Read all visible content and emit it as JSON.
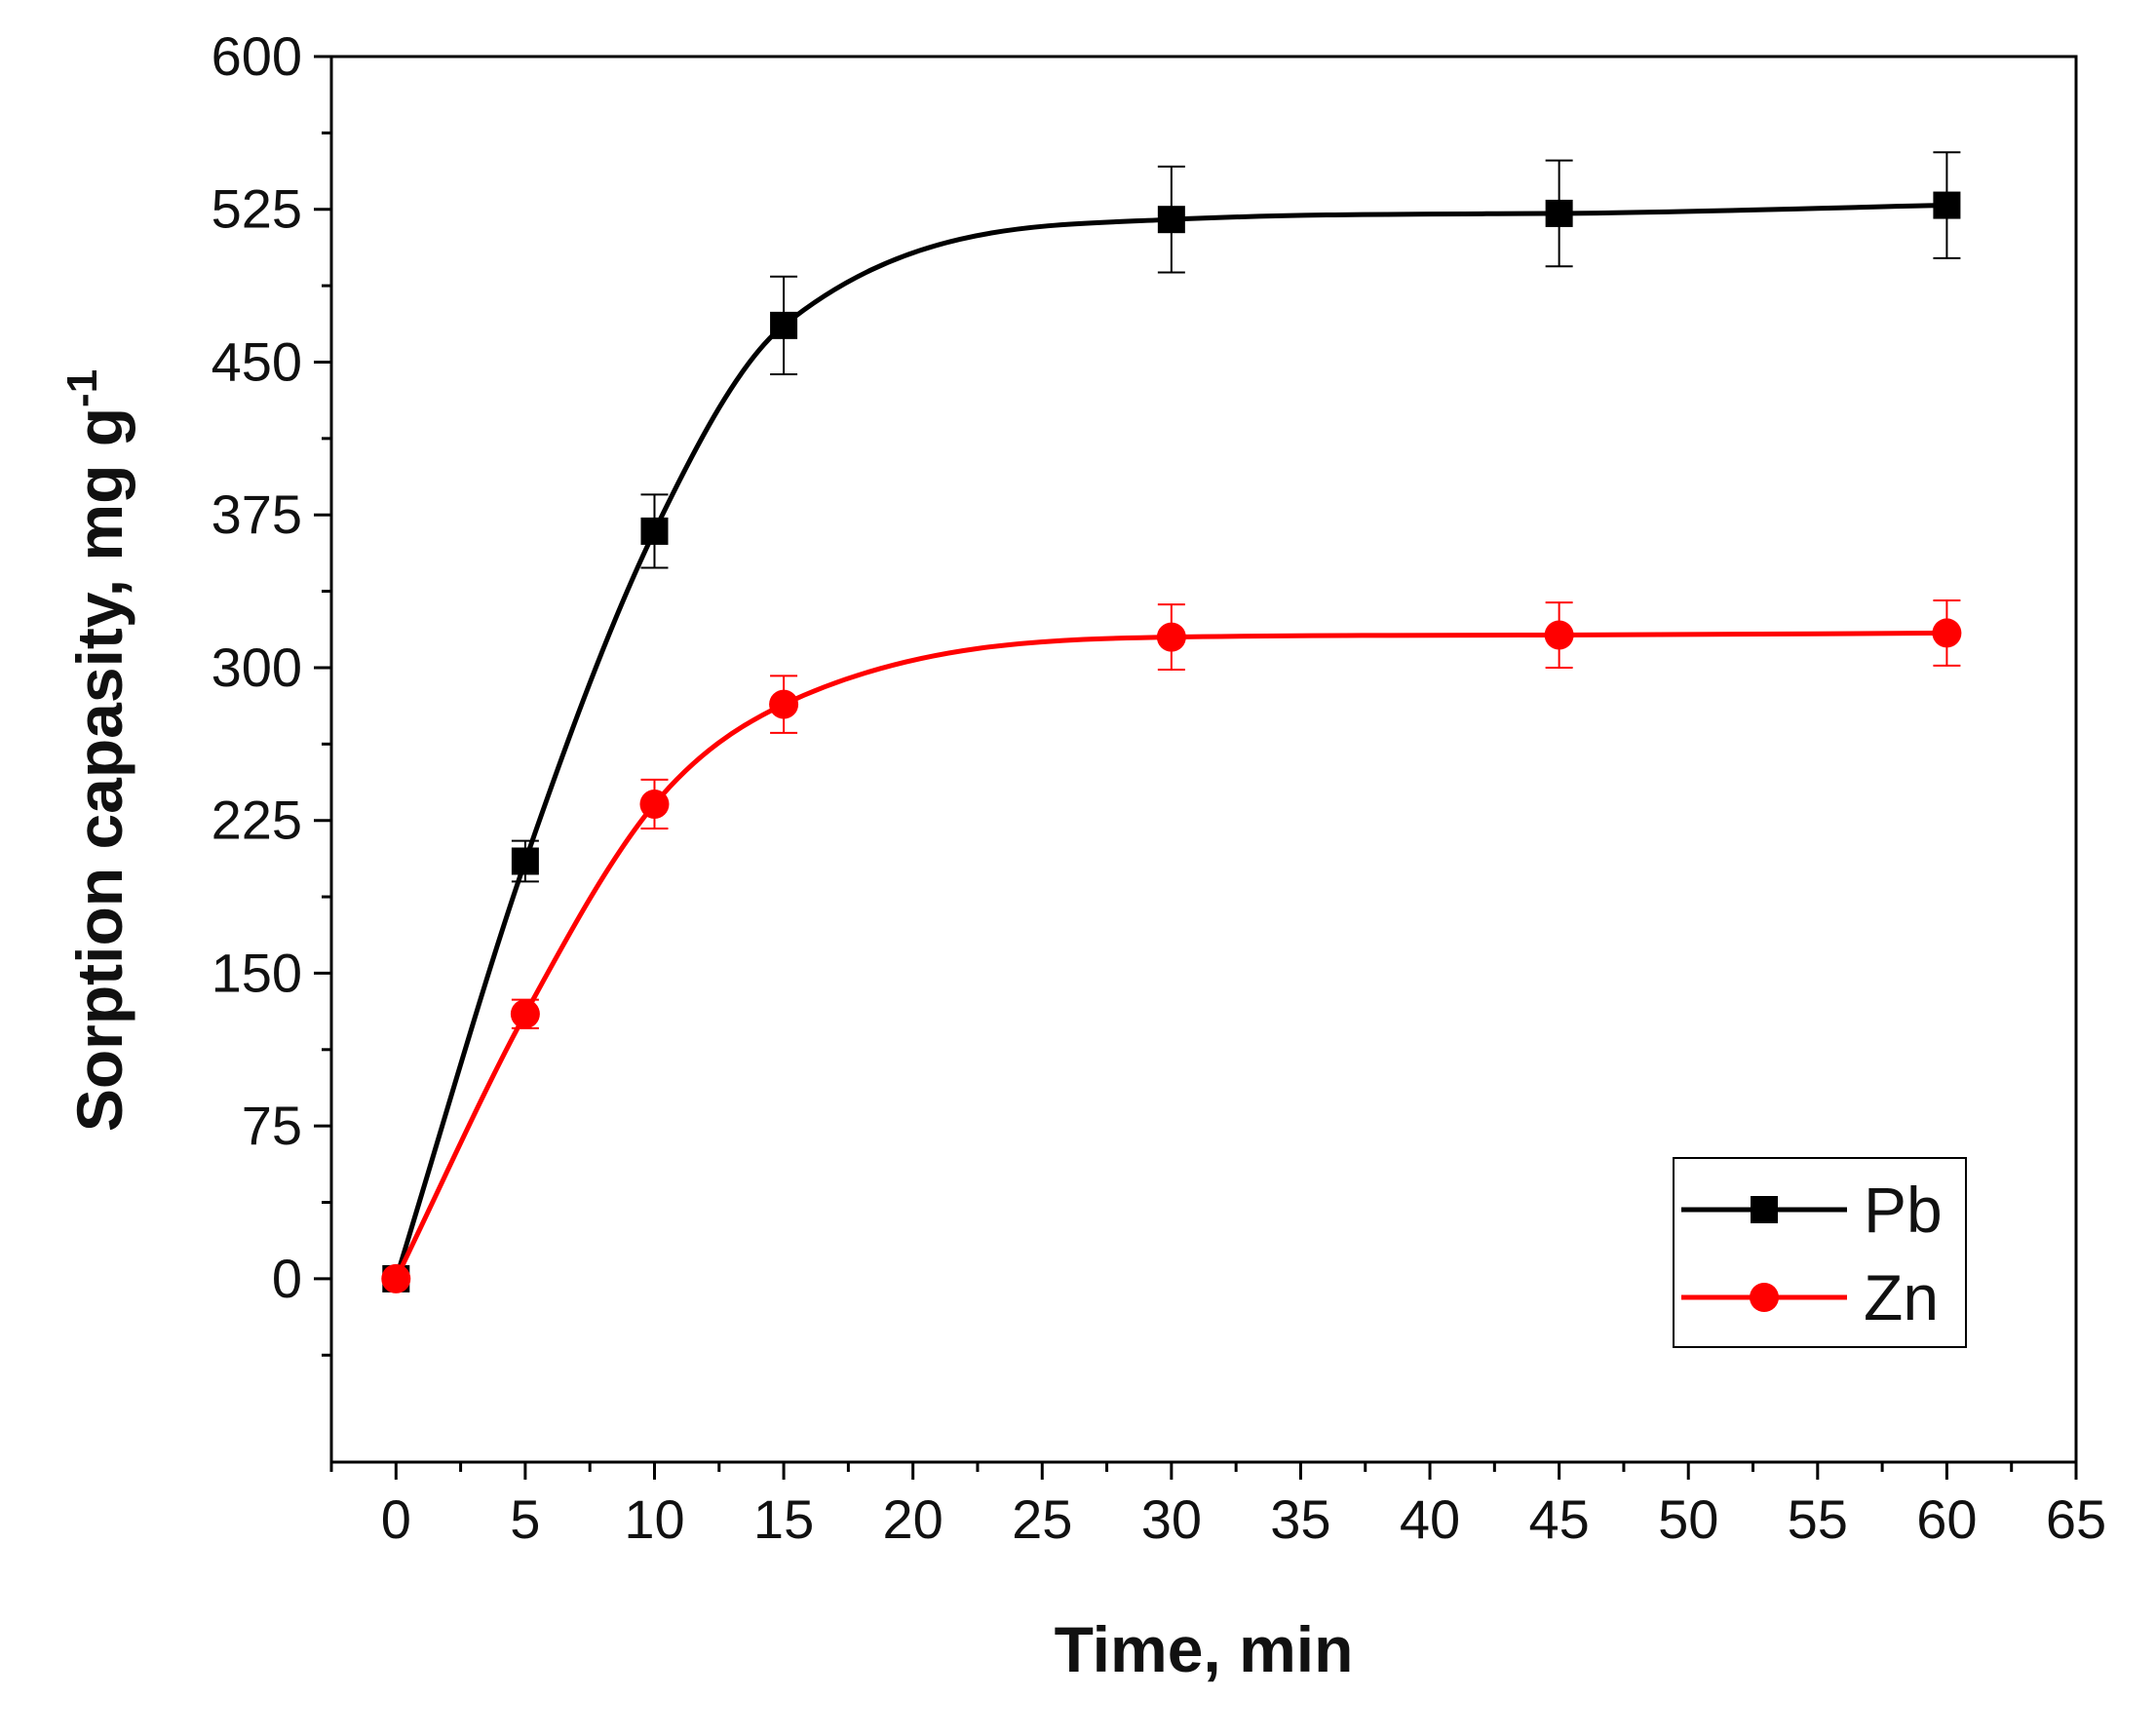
{
  "chart_data": {
    "type": "line",
    "title": "",
    "xlabel": "Time, min",
    "ylabel": "Sorption capasity, mg g",
    "ylabel_superscript": "-1",
    "xlim": [
      -2.5,
      65
    ],
    "ylim": [
      -90,
      600
    ],
    "x_ticks": [
      0,
      5,
      10,
      15,
      20,
      25,
      30,
      35,
      40,
      45,
      50,
      55,
      60,
      65
    ],
    "y_ticks": [
      0,
      75,
      150,
      225,
      300,
      375,
      450,
      525,
      600
    ],
    "x_tick_labels": [
      "0",
      "5",
      "10",
      "15",
      "20",
      "25",
      "30",
      "35",
      "40",
      "45",
      "50",
      "55",
      "60",
      "65"
    ],
    "y_tick_labels": [
      "0",
      "75",
      "150",
      "225",
      "300",
      "375",
      "450",
      "525",
      "600"
    ],
    "grid": false,
    "legend_position": "bottom-right",
    "series": [
      {
        "name": "Pb",
        "color": "#000000",
        "marker": "square",
        "x": [
          0,
          5,
          10,
          15,
          30,
          45,
          60
        ],
        "y": [
          0,
          205,
          367,
          468,
          520,
          523,
          527
        ],
        "error": [
          0,
          10,
          18,
          24,
          26,
          26,
          26
        ]
      },
      {
        "name": "Zn",
        "color": "#ff0000",
        "marker": "circle",
        "x": [
          0,
          5,
          10,
          15,
          30,
          45,
          60
        ],
        "y": [
          0,
          130,
          233,
          282,
          315,
          316,
          317
        ],
        "error": [
          0,
          7,
          12,
          14,
          16,
          16,
          16
        ]
      }
    ]
  }
}
